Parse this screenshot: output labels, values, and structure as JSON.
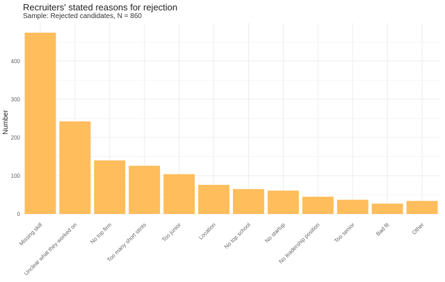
{
  "chart_data": {
    "type": "bar",
    "title": "Recruiters' stated reasons for rejection",
    "subtitle": "Sample: Rejected candidates, N = 860",
    "xlabel": "",
    "ylabel": "Number",
    "categories": [
      "Missing skill",
      "Unclear what they worked on",
      "No top firm",
      "Too many short stints",
      "Too junior",
      "Location",
      "No top school",
      "No startup",
      "No leadership position",
      "Too senior",
      "Bad fit",
      "Other"
    ],
    "values": [
      474,
      242,
      140,
      126,
      104,
      76,
      65,
      61,
      45,
      37,
      27,
      34
    ],
    "ylim": [
      0,
      480
    ],
    "yticks": [
      0,
      100,
      200,
      300,
      400
    ],
    "grid": true,
    "colors": {
      "bar": "#ffbd5b",
      "grid": "#ebebeb",
      "tick_text": "#666666"
    }
  }
}
